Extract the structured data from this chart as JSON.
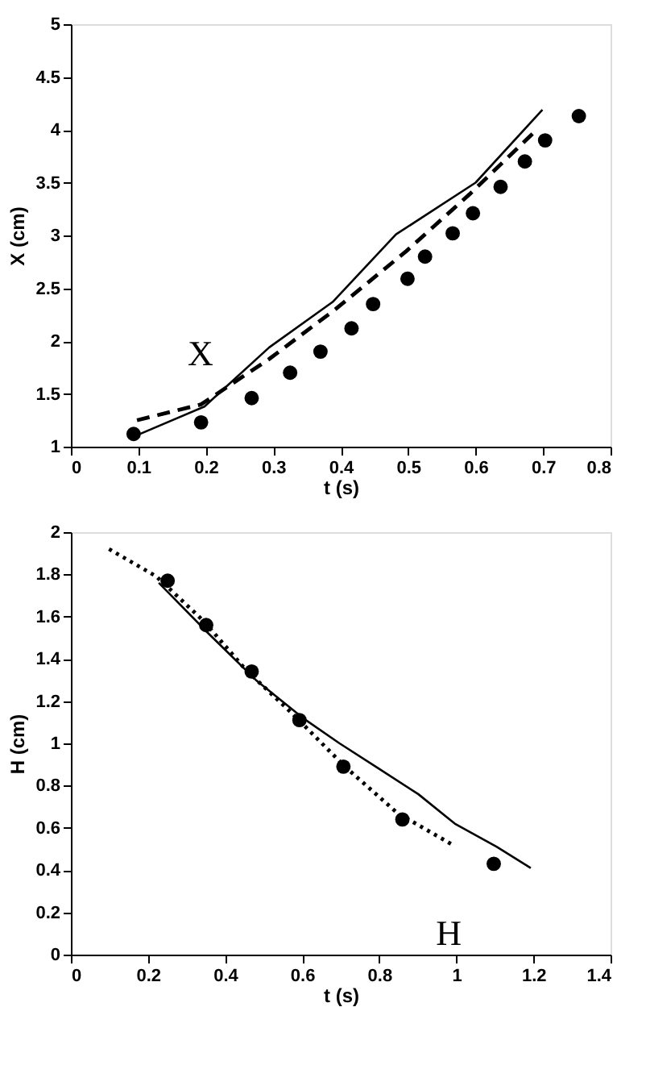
{
  "chart_data": [
    {
      "type": "line",
      "xlabel": "t (s)",
      "ylabel": "X (cm)",
      "xlim": [
        0,
        0.8
      ],
      "ylim": [
        1,
        5
      ],
      "xticks": [
        0,
        0.1,
        0.2,
        0.3,
        0.4,
        0.5,
        0.6,
        0.7,
        0.8
      ],
      "yticks": [
        1,
        1.5,
        2,
        2.5,
        3,
        3.5,
        4,
        4.5,
        5
      ],
      "annotations": [
        "X"
      ],
      "series": [
        {
          "type": "scatter",
          "marker": "circle",
          "color": "#000000",
          "x": [
            0.093,
            0.193,
            0.268,
            0.325,
            0.37,
            0.416,
            0.448,
            0.499,
            0.525,
            0.566,
            0.596,
            0.637,
            0.673,
            0.703,
            0.753
          ],
          "values": [
            1.12,
            1.23,
            1.46,
            1.7,
            1.9,
            2.12,
            2.35,
            2.59,
            2.8,
            3.02,
            3.21,
            3.46,
            3.7,
            3.9,
            4.13
          ]
        },
        {
          "line_style": "solid",
          "color": "#000000",
          "x": [
            0.095,
            0.198,
            0.294,
            0.388,
            0.482,
            0.6,
            0.699
          ],
          "values": [
            1.1,
            1.38,
            1.94,
            2.37,
            3.01,
            3.5,
            4.19
          ]
        },
        {
          "line_style": "dashed",
          "color": "#000000",
          "x": [
            0.098,
            0.193,
            0.294,
            0.392,
            0.497,
            0.591,
            0.692
          ],
          "values": [
            1.25,
            1.4,
            1.83,
            2.3,
            2.85,
            3.39,
            4.01
          ]
        }
      ]
    },
    {
      "type": "line",
      "xlabel": "t (s)",
      "ylabel": "H (cm)",
      "xlim": [
        0,
        1.4
      ],
      "ylim": [
        0,
        2
      ],
      "xticks": [
        0,
        0.2,
        0.4,
        0.6,
        0.8,
        1,
        1.2,
        1.4
      ],
      "yticks": [
        0,
        0.2,
        0.4,
        0.6,
        0.8,
        1,
        1.2,
        1.4,
        1.6,
        1.8,
        2
      ],
      "annotations": [
        "H"
      ],
      "series": [
        {
          "type": "scatter",
          "marker": "circle",
          "color": "#000000",
          "x": [
            0.251,
            0.351,
            0.469,
            0.593,
            0.707,
            0.86,
            1.097
          ],
          "values": [
            1.77,
            1.56,
            1.34,
            1.11,
            0.89,
            0.64,
            0.43
          ]
        },
        {
          "line_style": "solid",
          "color": "#000000",
          "x": [
            0.228,
            0.357,
            0.48,
            0.602,
            0.697,
            0.799,
            0.901,
            0.996,
            1.105,
            1.193
          ],
          "values": [
            1.76,
            1.52,
            1.3,
            1.12,
            1.0,
            0.88,
            0.76,
            0.62,
            0.51,
            0.41
          ]
        },
        {
          "line_style": "dotted",
          "color": "#000000",
          "x": [
            0.099,
            0.222,
            0.344,
            0.453,
            0.575,
            0.711,
            0.847,
            0.99
          ],
          "values": [
            1.92,
            1.79,
            1.58,
            1.35,
            1.14,
            0.89,
            0.67,
            0.52
          ]
        }
      ]
    }
  ]
}
